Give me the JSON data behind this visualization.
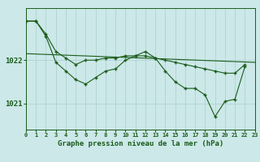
{
  "title": "Graphe pression niveau de la mer (hPa)",
  "bg_color": "#cce8e8",
  "line_color": "#1a5c1a",
  "grid_color": "#aacfcf",
  "x_min": 0,
  "x_max": 23,
  "y_min": 1020.4,
  "y_max": 1023.2,
  "yticks": [
    1021,
    1022
  ],
  "hours": [
    0,
    1,
    2,
    3,
    4,
    5,
    6,
    7,
    8,
    9,
    10,
    11,
    12,
    13,
    14,
    15,
    16,
    17,
    18,
    19,
    20,
    21,
    22,
    23
  ],
  "series_main": [
    1022.9,
    1022.9,
    1022.55,
    1021.95,
    1021.75,
    1021.55,
    1021.45,
    1021.6,
    1021.75,
    1021.8,
    1022.0,
    1022.1,
    1022.2,
    1022.05,
    1021.75,
    1021.5,
    1021.35,
    1021.35,
    1021.2,
    1020.7,
    1021.05,
    1021.1,
    1021.85,
    null
  ],
  "series_upper": [
    1022.9,
    1022.9,
    1022.6,
    1022.2,
    1022.05,
    1021.9,
    1022.0,
    1022.0,
    1022.05,
    1022.05,
    1022.1,
    1022.1,
    1022.1,
    1022.05,
    1022.0,
    1021.95,
    1021.9,
    1021.85,
    1021.8,
    1021.75,
    1021.7,
    1021.7,
    1021.9,
    null
  ],
  "series_flat": [
    1022.9,
    1022.9,
    null,
    null,
    null,
    null,
    null,
    null,
    null,
    null,
    null,
    null,
    null,
    null,
    null,
    null,
    null,
    null,
    null,
    null,
    null,
    null,
    null,
    null
  ],
  "flat_line_x": [
    0,
    23
  ],
  "flat_line_y": [
    1022.15,
    1021.95
  ]
}
